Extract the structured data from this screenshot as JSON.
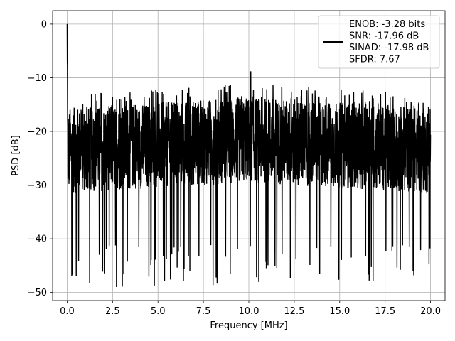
{
  "chart_data": {
    "type": "line",
    "title": "",
    "xlabel": "Frequency [MHz]",
    "ylabel": "PSD [dB]",
    "xlim": [
      -0.8,
      20.8
    ],
    "ylim": [
      -51.5,
      2.5
    ],
    "xticks": [
      0.0,
      2.5,
      5.0,
      7.5,
      10.0,
      12.5,
      15.0,
      17.5,
      20.0
    ],
    "xtick_labels": [
      "0.0",
      "2.5",
      "5.0",
      "7.5",
      "10.0",
      "12.5",
      "15.0",
      "17.5",
      "20.0"
    ],
    "yticks": [
      0,
      -10,
      -20,
      -30,
      -40,
      -50
    ],
    "ytick_labels": [
      "0",
      "−10",
      "−20",
      "−30",
      "−40",
      "−50"
    ],
    "grid": true,
    "legend_placement": "upper-right",
    "legend_entries": [
      "ENOB: -3.28 bits",
      "SNR: -17.96 dB",
      "SINAD: -17.98 dB",
      "SFDR: 7.67"
    ],
    "series": [
      {
        "color": "#000000",
        "x_start": 0.0,
        "x_end": 20.0,
        "peak": {
          "x": 0.0,
          "y": 0.0
        },
        "noise_mean_db": -24,
        "upper_envelope_db": -15,
        "lower_extremes_db": -49,
        "max_spur": {
          "x": 10.1,
          "y": -8.9
        }
      }
    ]
  }
}
